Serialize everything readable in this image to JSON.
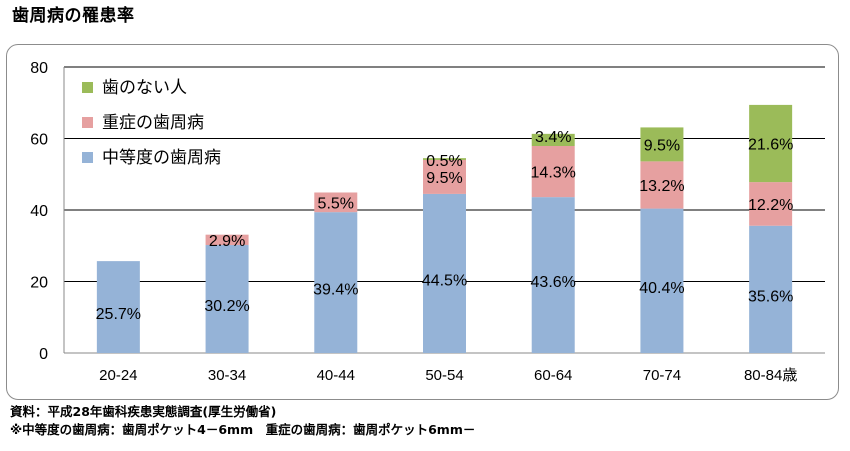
{
  "title": "歯周病の罹患率",
  "chart_data": {
    "type": "bar",
    "stacked": true,
    "categories": [
      "20-24",
      "30-34",
      "40-44",
      "50-54",
      "60-64",
      "70-74",
      "80-84歳"
    ],
    "series": [
      {
        "name": "中等度の歯周病",
        "color": "#95b3d7",
        "values": [
          25.7,
          30.2,
          39.4,
          44.5,
          43.6,
          40.4,
          35.6
        ],
        "labels": [
          "25.7%",
          "30.2%",
          "39.4%",
          "44.5%",
          "43.6%",
          "40.4%",
          "35.6%"
        ]
      },
      {
        "name": "重症の歯周病",
        "color": "#e6a0a0",
        "values": [
          0,
          2.9,
          5.5,
          9.5,
          14.3,
          13.2,
          12.2
        ],
        "labels": [
          "",
          "2.9%",
          "5.5%",
          "9.5%",
          "14.3%",
          "13.2%",
          "12.2%"
        ]
      },
      {
        "name": "歯のない人",
        "color": "#9bbb59",
        "values": [
          0,
          0,
          0,
          0.5,
          3.4,
          9.5,
          21.6
        ],
        "labels": [
          "",
          "",
          "",
          "0.5%",
          "3.4%",
          "9.5%",
          "21.6%"
        ]
      }
    ],
    "ylim": [
      0,
      80
    ],
    "yticks": [
      "0",
      "20",
      "40",
      "60",
      "80"
    ],
    "grid": true,
    "legend": "top-left"
  },
  "notes": {
    "source": "資料：平成28年歯科疾患実態調査(厚生労働省)",
    "definition": "※中等度の歯周病：歯周ポケット4－6mm　重症の歯周病：歯周ポケット6mm－"
  }
}
